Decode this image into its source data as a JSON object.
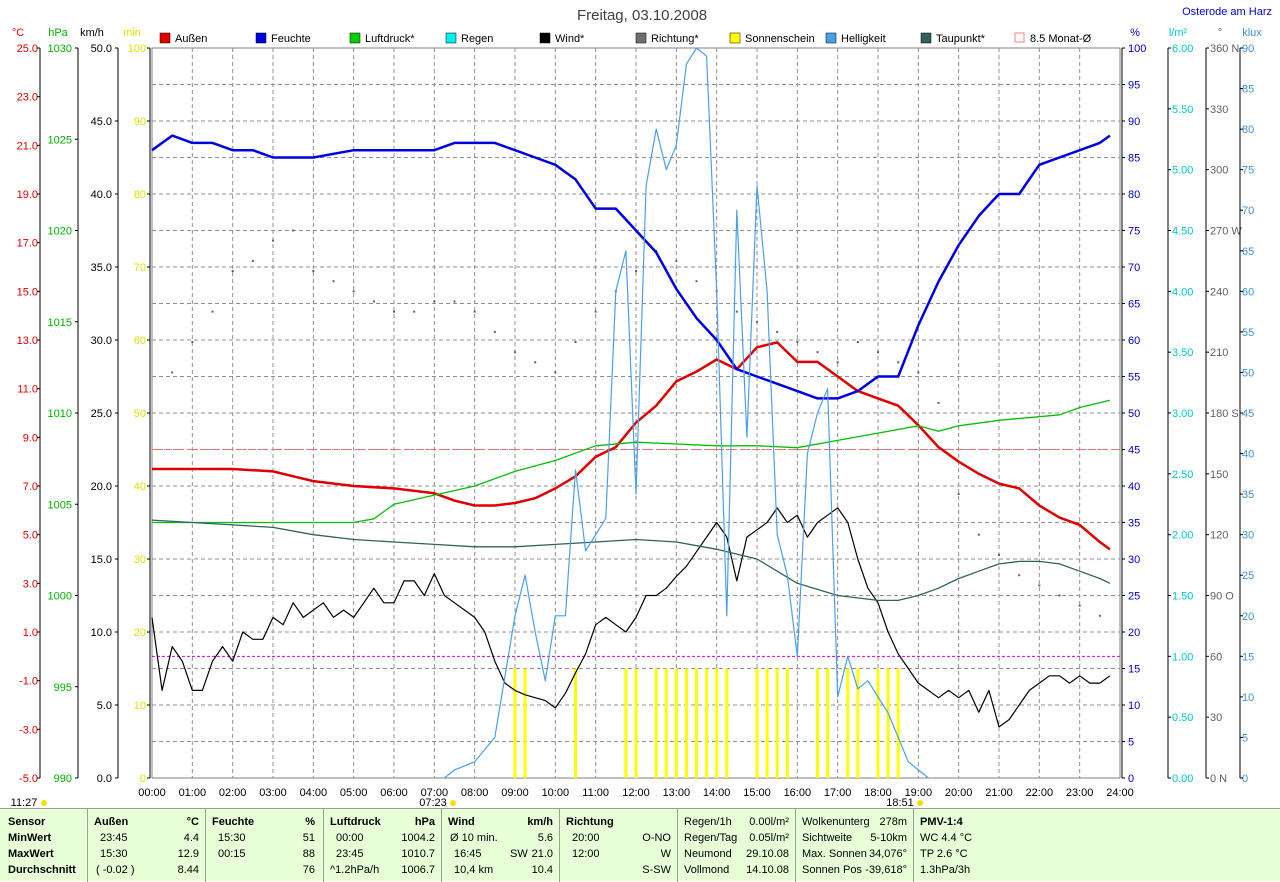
{
  "header": {
    "title": "Freitag, 03.10.2008",
    "location": "Osterode am Harz"
  },
  "axis_units": {
    "temp": "°C",
    "pressure": "hPa",
    "wind": "km/h",
    "sunmin": "min",
    "humidity": "%",
    "rain": "l/m²",
    "direction": "°",
    "light": "klux"
  },
  "legend": [
    {
      "label": "Außen",
      "color": "#e00000"
    },
    {
      "label": "Feuchte",
      "color": "#0000e0"
    },
    {
      "label": "Luftdruck*",
      "color": "#00d000"
    },
    {
      "label": "Regen",
      "color": "#00f0f0"
    },
    {
      "label": "Wind*",
      "color": "#000000"
    },
    {
      "label": "Richtung*",
      "color": "#707070"
    },
    {
      "label": "Sonnenschein",
      "color": "#ffff00"
    },
    {
      "label": "Helligkeit",
      "color": "#4aa0e8"
    },
    {
      "label": "Taupunkt*",
      "color": "#306060"
    },
    {
      "label": "8.5 Monat-Ø",
      "color": "#f08080"
    }
  ],
  "time_marks": {
    "now": "11:27",
    "sunrise": "07:23",
    "sunset": "18:51"
  },
  "chart_data": {
    "type": "line",
    "title": "Freitag, 03.10.2008",
    "x_ticks": [
      "00:00",
      "01:00",
      "02:00",
      "03:00",
      "04:00",
      "05:00",
      "06:00",
      "07:00",
      "08:00",
      "09:00",
      "10:00",
      "11:00",
      "12:00",
      "13:00",
      "14:00",
      "15:00",
      "16:00",
      "17:00",
      "18:00",
      "19:00",
      "20:00",
      "21:00",
      "22:00",
      "23:00",
      "24:00"
    ],
    "axes": {
      "temp": {
        "unit": "°C",
        "range": [
          -5,
          25
        ],
        "ticks": [
          "25.0",
          "23.0",
          "21.0",
          "19.0",
          "17.0",
          "15.0",
          "13.0",
          "11.0",
          "9.0",
          "7.0",
          "5.0",
          "3.0",
          "1.0",
          "-1.0",
          "-3.0",
          "-5.0"
        ]
      },
      "pressure": {
        "unit": "hPa",
        "range": [
          990,
          1030
        ],
        "ticks": [
          "1030",
          "1025",
          "1020",
          "1015",
          "1010",
          "1005",
          "1000",
          "995",
          "990"
        ]
      },
      "wind": {
        "unit": "km/h",
        "range": [
          0,
          50
        ],
        "ticks": [
          "50.0",
          "45.0",
          "40.0",
          "35.0",
          "30.0",
          "25.0",
          "20.0",
          "15.0",
          "10.0",
          "5.0",
          "0.0"
        ]
      },
      "sunshine": {
        "unit": "min",
        "range": [
          0,
          100
        ],
        "ticks": [
          "100",
          "90",
          "80",
          "70",
          "60",
          "50",
          "40",
          "30",
          "20",
          "10",
          "0"
        ]
      },
      "humidity": {
        "unit": "%",
        "range": [
          0,
          100
        ],
        "ticks": [
          "100",
          "95",
          "90",
          "85",
          "80",
          "75",
          "70",
          "65",
          "60",
          "55",
          "50",
          "45",
          "40",
          "35",
          "30",
          "25",
          "20",
          "15",
          "10",
          "5",
          "0"
        ]
      },
      "rain": {
        "unit": "l/m²",
        "range": [
          0,
          6
        ],
        "ticks": [
          "6.00",
          "5.50",
          "5.00",
          "4.50",
          "4.00",
          "3.50",
          "3.00",
          "2.50",
          "2.00",
          "1.50",
          "1.00",
          "0.50",
          "0.00"
        ]
      },
      "direction": {
        "unit": "°",
        "range": [
          0,
          360
        ],
        "ticks": [
          "360 N",
          "330",
          "300",
          "270 W",
          "240",
          "210",
          "180 S",
          "150",
          "120",
          "90 O",
          "60",
          "30",
          "0 N"
        ]
      },
      "light": {
        "unit": "klux",
        "range": [
          0,
          90
        ],
        "ticks": [
          "90",
          "85",
          "80",
          "75",
          "70",
          "65",
          "60",
          "55",
          "50",
          "45",
          "40",
          "35",
          "30",
          "25",
          "20",
          "15",
          "10",
          "5",
          "0"
        ]
      }
    },
    "monthly_avg_temp": 8.5,
    "rain_line": 1.0,
    "series": [
      {
        "name": "Außen",
        "axis": "temp",
        "color": "#e00000",
        "x": [
          0,
          1,
          2,
          3,
          3.5,
          4,
          5,
          6,
          7,
          7.5,
          8,
          8.5,
          9,
          9.5,
          10,
          10.5,
          11,
          11.5,
          12,
          12.5,
          13,
          13.5,
          14,
          14.5,
          15,
          15.5,
          16,
          16.5,
          17,
          17.5,
          18,
          18.5,
          19,
          19.5,
          20,
          20.5,
          21,
          21.5,
          22,
          22.5,
          23,
          23.5,
          23.75
        ],
        "y": [
          7.7,
          7.7,
          7.7,
          7.6,
          7.4,
          7.2,
          7.0,
          6.9,
          6.7,
          6.4,
          6.2,
          6.2,
          6.3,
          6.5,
          6.9,
          7.4,
          8.2,
          8.6,
          9.6,
          10.3,
          11.3,
          11.7,
          12.2,
          11.8,
          12.7,
          12.9,
          12.1,
          12.1,
          11.5,
          10.9,
          10.6,
          10.3,
          9.5,
          8.6,
          8.0,
          7.5,
          7.1,
          6.9,
          6.2,
          5.7,
          5.4,
          4.7,
          4.4
        ]
      },
      {
        "name": "Feuchte",
        "axis": "humidity",
        "color": "#0000e0",
        "x": [
          0,
          0.5,
          1,
          1.5,
          2,
          2.5,
          3,
          4,
          5,
          6,
          7,
          7.5,
          8,
          8.5,
          9,
          9.5,
          10,
          10.5,
          11,
          11.5,
          12,
          12.5,
          13,
          13.5,
          14,
          14.5,
          15,
          15.5,
          16,
          16.5,
          17,
          17.5,
          18,
          18.5,
          19,
          19.5,
          20,
          20.5,
          21,
          21.5,
          22,
          22.5,
          23,
          23.5,
          23.75
        ],
        "y": [
          86,
          88,
          87,
          87,
          86,
          86,
          85,
          85,
          86,
          86,
          86,
          87,
          87,
          87,
          86,
          85,
          84,
          82,
          78,
          78,
          75,
          72,
          67,
          63,
          60,
          56,
          55,
          54,
          53,
          52,
          52,
          53,
          55,
          55,
          62,
          68,
          73,
          77,
          80,
          80,
          84,
          85,
          86,
          87,
          88
        ]
      },
      {
        "name": "Luftdruck*",
        "axis": "pressure",
        "color": "#00c000",
        "x": [
          0,
          1,
          2,
          3,
          4,
          5,
          5.5,
          6,
          7,
          8,
          9,
          10,
          11,
          12,
          13,
          14,
          15,
          16,
          17,
          18,
          19,
          19.5,
          20,
          21,
          22,
          22.5,
          23,
          23.75
        ],
        "y": [
          1004.0,
          1004.0,
          1004.0,
          1004.0,
          1004.0,
          1004.0,
          1004.2,
          1005.0,
          1005.5,
          1006.0,
          1006.8,
          1007.4,
          1008.2,
          1008.4,
          1008.3,
          1008.2,
          1008.2,
          1008.1,
          1008.5,
          1008.9,
          1009.3,
          1009.0,
          1009.3,
          1009.6,
          1009.8,
          1009.9,
          1010.3,
          1010.7
        ]
      },
      {
        "name": "Wind*",
        "axis": "wind",
        "color": "#000000",
        "x": [
          0,
          0.25,
          0.5,
          0.75,
          1,
          1.25,
          1.5,
          1.75,
          2,
          2.25,
          2.5,
          2.75,
          3,
          3.25,
          3.5,
          3.75,
          4,
          4.25,
          4.5,
          4.75,
          5,
          5.25,
          5.5,
          5.75,
          6,
          6.25,
          6.5,
          6.75,
          7,
          7.25,
          7.5,
          7.75,
          8,
          8.25,
          8.5,
          8.75,
          9,
          9.25,
          9.5,
          9.75,
          10,
          10.25,
          10.5,
          10.75,
          11,
          11.25,
          11.5,
          11.75,
          12,
          12.25,
          12.5,
          12.75,
          13,
          13.25,
          13.5,
          13.75,
          14,
          14.25,
          14.5,
          14.75,
          15,
          15.25,
          15.5,
          15.75,
          16,
          16.25,
          16.5,
          16.75,
          17,
          17.25,
          17.5,
          17.75,
          18,
          18.25,
          18.5,
          18.75,
          19,
          19.25,
          19.5,
          19.75,
          20,
          20.25,
          20.5,
          20.75,
          21,
          21.25,
          21.5,
          21.75,
          22,
          22.25,
          22.5,
          22.75,
          23,
          23.25,
          23.5,
          23.75
        ],
        "y": [
          11,
          6,
          9,
          8,
          6,
          6,
          8,
          9,
          8,
          10,
          9.5,
          9.5,
          11,
          10.5,
          12,
          11,
          11.5,
          12,
          11,
          11.5,
          11,
          12,
          13,
          12,
          12,
          13.5,
          13.5,
          12.5,
          14,
          12.5,
          12,
          11.5,
          11,
          10,
          8,
          6.5,
          6,
          5.7,
          5.5,
          5.3,
          4.8,
          5.8,
          7.2,
          8.5,
          10.5,
          11,
          10.5,
          10,
          11,
          12.5,
          12.5,
          13,
          13.8,
          14.5,
          15.5,
          16.5,
          17.5,
          16.5,
          13.5,
          16.5,
          17,
          17.5,
          18.5,
          17.5,
          18,
          16.5,
          17.5,
          18,
          18.5,
          17.5,
          15,
          13,
          12,
          10,
          8.5,
          7.5,
          6.5,
          6,
          5.5,
          6,
          5.5,
          6,
          4.5,
          6,
          3.5,
          4,
          5,
          6,
          6.5,
          7,
          7,
          6.5,
          7,
          6.5,
          6.5,
          7
        ]
      },
      {
        "name": "Taupunkt*",
        "axis": "temp",
        "color": "#306060",
        "x": [
          0,
          1,
          2,
          3,
          4,
          5,
          6,
          7,
          8,
          9,
          10,
          11,
          12,
          13,
          14,
          15,
          16,
          17,
          18,
          18.5,
          19,
          19.5,
          20,
          20.5,
          21,
          21.5,
          22,
          22.5,
          23,
          23.5,
          23.75
        ],
        "y": [
          5.6,
          5.5,
          5.4,
          5.3,
          5.0,
          4.8,
          4.7,
          4.6,
          4.5,
          4.5,
          4.6,
          4.7,
          4.8,
          4.7,
          4.4,
          4.0,
          3.0,
          2.5,
          2.3,
          2.3,
          2.5,
          2.8,
          3.2,
          3.5,
          3.8,
          3.9,
          3.9,
          3.8,
          3.5,
          3.2,
          3.0
        ]
      },
      {
        "name": "Helligkeit",
        "axis": "light",
        "color": "#4aa0e8",
        "x": [
          7.25,
          7.5,
          8,
          8.5,
          9,
          9.25,
          9.5,
          9.75,
          10,
          10.25,
          10.5,
          10.75,
          11,
          11.25,
          11.5,
          11.75,
          12,
          12.25,
          12.5,
          12.75,
          13,
          13.25,
          13.5,
          13.75,
          14,
          14.25,
          14.5,
          14.75,
          15,
          15.25,
          15.5,
          15.75,
          16,
          16.25,
          16.5,
          16.75,
          17,
          17.25,
          17.5,
          17.75,
          18,
          18.25,
          18.5,
          18.75,
          19,
          19.25
        ],
        "y": [
          0,
          1,
          2,
          5,
          20,
          25,
          18,
          12,
          20,
          20,
          38,
          28,
          30,
          32,
          60,
          65,
          35,
          73,
          80,
          75,
          78,
          88,
          90,
          89,
          60,
          20,
          70,
          42,
          73,
          60,
          30,
          25,
          15,
          40,
          45,
          48,
          10,
          15,
          11,
          12,
          10,
          8,
          5,
          2,
          1,
          0
        ]
      }
    ],
    "sunshine_bars": {
      "axis": "sunshine",
      "color": "#ffff00",
      "x": [
        9.0,
        9.25,
        10.5,
        11.75,
        12.0,
        12.5,
        12.75,
        13.0,
        13.25,
        13.5,
        13.75,
        14.0,
        14.25,
        15.0,
        15.25,
        15.5,
        15.75,
        16.5,
        16.75,
        17.25,
        17.5,
        18.0,
        18.25,
        18.5
      ],
      "values": [
        15,
        15,
        15,
        15,
        15,
        15,
        15,
        15,
        15,
        15,
        15,
        15,
        15,
        15,
        15,
        15,
        15,
        15,
        15,
        15,
        15,
        15,
        15,
        15
      ]
    },
    "direction_points": {
      "axis": "direction",
      "color": "#606060",
      "x": [
        0.5,
        1,
        1.5,
        2,
        2.5,
        3,
        3.5,
        4,
        4.5,
        5,
        5.5,
        6,
        6.5,
        7,
        7.5,
        8,
        8.5,
        9,
        9.5,
        10,
        10.5,
        11,
        11.5,
        12,
        12.5,
        13,
        13.5,
        14,
        14.5,
        15,
        15.5,
        16,
        16.5,
        17,
        17.5,
        18,
        18.5,
        19,
        19.5,
        20,
        20.5,
        21,
        21.5,
        22,
        22.5,
        23,
        23.5
      ],
      "y": [
        200,
        215,
        230,
        250,
        255,
        265,
        270,
        250,
        245,
        240,
        235,
        230,
        230,
        235,
        235,
        230,
        220,
        210,
        205,
        200,
        215,
        230,
        240,
        250,
        260,
        255,
        245,
        240,
        230,
        225,
        220,
        215,
        210,
        205,
        215,
        210,
        205,
        200,
        185,
        140,
        120,
        110,
        100,
        95,
        90,
        85,
        80
      ]
    }
  },
  "stats": {
    "labels": {
      "sensor": "Sensor",
      "min": "MinWert",
      "max": "MaxWert",
      "avg": "Durchschnitt"
    },
    "aussen": {
      "title": "Außen",
      "unit": "°C",
      "min_time": "23:45",
      "min_val": "4.4",
      "max_time": "15:30",
      "max_val": "12.9",
      "avg_extra": "( -0.02 )",
      "avg_val": "8.44"
    },
    "feuchte": {
      "title": "Feuchte",
      "unit": "%",
      "min_time": "15:30",
      "min_val": "51",
      "max_time": "00:15",
      "max_val": "88",
      "avg_val": "76"
    },
    "luftdruck": {
      "title": "Luftdruck",
      "unit": "hPa",
      "min_time": "00:00",
      "min_val": "1004.2",
      "max_time": "23:45",
      "max_val": "1010.7",
      "avg_extra": "^1.2hPa/h",
      "avg_val": "1006.7"
    },
    "wind": {
      "title": "Wind",
      "unit": "km/h",
      "r1_label": "Ø 10 min.",
      "r1_val": "5.6",
      "r2_label": "16:45",
      "r2_mid": "SW",
      "r2_val": "21.0",
      "r3_label": "10,4 km",
      "r3_val": "10.4"
    },
    "richtung": {
      "title": "Richtung",
      "r1_time": "20:00",
      "r1_val": "O-NO",
      "r2_time": "12:00",
      "r2_val": "W",
      "r3_val": "S-SW"
    },
    "regen": {
      "r0_label": "Regen/1h",
      "r0_val": "0.00l/m²",
      "r1_label": "Regen/Tag",
      "r1_val": "0.05l/m²",
      "r2_label": "Neumond",
      "r2_val": "29.10.08",
      "r3_label": "Vollmond",
      "r3_val": "14.10.08"
    },
    "wolken": {
      "r0_label": "Wolkenunterg",
      "r0_val": "278m",
      "r1_label": "Sichtweite",
      "r1_val": "5-10km",
      "r2_label": "Max. Sonnen",
      "r2_val": "34,076°",
      "r3_label": "Sonnen Pos",
      "r3_val": "-39,618°"
    },
    "pmv": {
      "title": "PMV-1:4",
      "r1": "WC 4.4 °C",
      "r2": "TP 2.6 °C",
      "r3": "1.3hPa/3h"
    }
  }
}
